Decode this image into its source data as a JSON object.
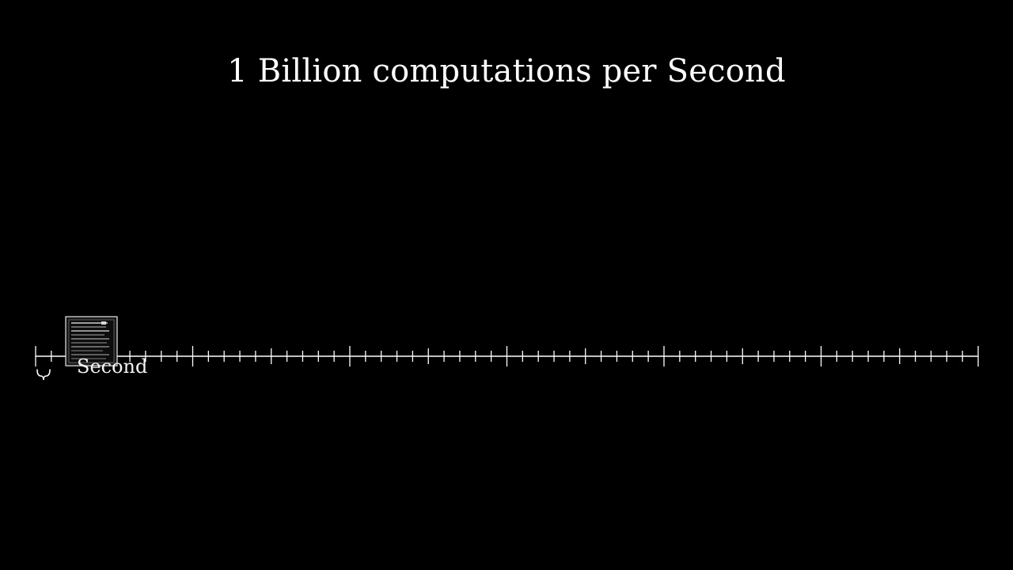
{
  "title": "1 Billion computations per Second",
  "timeline": {
    "unit_label": "Second",
    "total_ticks": 60,
    "major_every": 10,
    "minor_every": 5,
    "color": "#ffffff",
    "computer_icon": "computer-monitor-icon",
    "marker_icon": "brace-marker-icon"
  }
}
